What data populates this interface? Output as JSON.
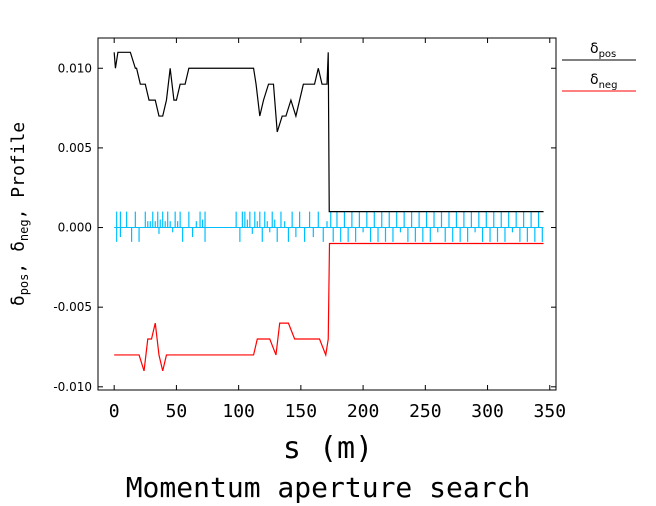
{
  "chart_data": {
    "type": "line",
    "title": "Momentum aperture search",
    "xlabel": "s (m)",
    "ylabel_main": "δ",
    "ylabel_sub1": "pos",
    "ylabel_sep": ", ",
    "ylabel_sub2": "neg",
    "ylabel_tail": ", Profile",
    "xlim": [
      -13,
      355
    ],
    "ylim": [
      -0.0102,
      0.0119
    ],
    "x_ticks": [
      0,
      50,
      100,
      150,
      200,
      250,
      300,
      350
    ],
    "x_tick_labels": [
      "0",
      "50",
      "100",
      "150",
      "200",
      "250",
      "300",
      "350"
    ],
    "y_ticks": [
      0.01,
      0.005,
      0.0,
      -0.005,
      -0.01
    ],
    "y_tick_labels": [
      "0.010",
      "0.005",
      "0.000",
      "-0.005",
      "-0.010"
    ],
    "legend_position": "right-outside",
    "colors": {
      "delta_pos": "#000000",
      "delta_neg": "#ff0000",
      "profile": "#00bfff",
      "axis": "#000000"
    },
    "legend": [
      {
        "main": "δ",
        "sub": "pos",
        "color": "#000000"
      },
      {
        "main": "δ",
        "sub": "neg",
        "color": "#ff0000"
      }
    ],
    "series": [
      {
        "name": "δpos",
        "color": "#000000",
        "x": [
          0,
          1,
          3,
          4,
          12,
          13,
          17,
          18,
          21,
          25,
          28,
          33,
          36,
          39,
          42,
          45,
          48,
          50,
          53,
          57,
          60,
          65,
          70,
          75,
          80,
          100,
          112,
          114,
          117,
          120,
          124,
          128,
          131,
          135,
          138,
          142,
          146,
          152,
          157,
          161,
          164,
          167,
          170,
          171,
          172,
          172.8,
          173,
          175,
          200,
          250,
          300,
          345
        ],
        "y": [
          0.011,
          0.01,
          0.011,
          0.011,
          0.011,
          0.011,
          0.01,
          0.01,
          0.009,
          0.009,
          0.008,
          0.008,
          0.007,
          0.007,
          0.008,
          0.01,
          0.008,
          0.008,
          0.009,
          0.009,
          0.01,
          0.01,
          0.01,
          0.01,
          0.01,
          0.01,
          0.01,
          0.009,
          0.007,
          0.008,
          0.009,
          0.009,
          0.006,
          0.007,
          0.007,
          0.008,
          0.007,
          0.009,
          0.009,
          0.009,
          0.01,
          0.009,
          0.009,
          0.009,
          0.011,
          0.001,
          0.001,
          0.001,
          0.001,
          0.001,
          0.001,
          0.001
        ]
      },
      {
        "name": "δneg",
        "color": "#ff0000",
        "x": [
          0,
          5,
          15,
          20,
          24,
          27,
          30,
          33,
          36,
          39,
          42,
          45,
          48,
          52,
          60,
          70,
          80,
          90,
          100,
          112,
          115,
          118,
          125,
          130,
          133,
          140,
          145,
          150,
          155,
          160,
          165,
          170,
          172,
          173,
          175,
          200,
          250,
          300,
          345
        ],
        "y": [
          -0.008,
          -0.008,
          -0.008,
          -0.008,
          -0.009,
          -0.007,
          -0.007,
          -0.006,
          -0.008,
          -0.009,
          -0.008,
          -0.008,
          -0.008,
          -0.008,
          -0.008,
          -0.008,
          -0.008,
          -0.008,
          -0.008,
          -0.008,
          -0.007,
          -0.007,
          -0.007,
          -0.008,
          -0.006,
          -0.006,
          -0.007,
          -0.007,
          -0.007,
          -0.007,
          -0.007,
          -0.008,
          -0.007,
          -0.001,
          -0.001,
          -0.001,
          -0.001,
          -0.001,
          -0.001
        ]
      },
      {
        "name": "Profile",
        "color": "#00bfff",
        "baseline": 0.0,
        "span": [
          0,
          345
        ],
        "spikes": [
          {
            "x": 2,
            "y": 0.001
          },
          {
            "x": 2,
            "y": -0.0009
          },
          {
            "x": 5,
            "y": 0.001
          },
          {
            "x": 5,
            "y": -0.0006
          },
          {
            "x": 10,
            "y": 0.001
          },
          {
            "x": 14,
            "y": -0.0009
          },
          {
            "x": 17,
            "y": 0.001
          },
          {
            "x": 20,
            "y": -0.0009
          },
          {
            "x": 25,
            "y": 0.001
          },
          {
            "x": 27,
            "y": 0.0004
          },
          {
            "x": 29,
            "y": 0.0004
          },
          {
            "x": 31,
            "y": 0.001
          },
          {
            "x": 33,
            "y": 0.0004
          },
          {
            "x": 35,
            "y": 0.001
          },
          {
            "x": 36,
            "y": -0.0004
          },
          {
            "x": 37,
            "y": 0.0005
          },
          {
            "x": 39,
            "y": 0.001
          },
          {
            "x": 41,
            "y": 0.0004
          },
          {
            "x": 43,
            "y": 0.001
          },
          {
            "x": 45,
            "y": 0.0004
          },
          {
            "x": 47,
            "y": -0.0003
          },
          {
            "x": 49,
            "y": 0.001
          },
          {
            "x": 51,
            "y": 0.0004
          },
          {
            "x": 53,
            "y": 0.001
          },
          {
            "x": 55,
            "y": -0.0009
          },
          {
            "x": 60,
            "y": 0.001
          },
          {
            "x": 63,
            "y": -0.0006
          },
          {
            "x": 66,
            "y": 0.0004
          },
          {
            "x": 69,
            "y": 0.001
          },
          {
            "x": 71,
            "y": 0.0005
          },
          {
            "x": 73,
            "y": 0.001
          },
          {
            "x": 73,
            "y": -0.0009
          },
          {
            "x": 98,
            "y": 0.001
          },
          {
            "x": 101,
            "y": -0.0009
          },
          {
            "x": 103,
            "y": 0.001
          },
          {
            "x": 105,
            "y": 0.001
          },
          {
            "x": 107,
            "y": 0.0005
          },
          {
            "x": 109,
            "y": 0.001
          },
          {
            "x": 111,
            "y": -0.0004
          },
          {
            "x": 113,
            "y": 0.001
          },
          {
            "x": 115,
            "y": 0.0004
          },
          {
            "x": 117,
            "y": 0.001
          },
          {
            "x": 119,
            "y": -0.0009
          },
          {
            "x": 121,
            "y": 0.001
          },
          {
            "x": 123,
            "y": 0.0004
          },
          {
            "x": 125,
            "y": -0.0003
          },
          {
            "x": 127,
            "y": 0.001
          },
          {
            "x": 129,
            "y": 0.0005
          },
          {
            "x": 131,
            "y": -0.0009
          },
          {
            "x": 134,
            "y": 0.001
          },
          {
            "x": 137,
            "y": 0.0004
          },
          {
            "x": 140,
            "y": -0.0009
          },
          {
            "x": 143,
            "y": 0.001
          },
          {
            "x": 146,
            "y": -0.0006
          },
          {
            "x": 149,
            "y": 0.001
          },
          {
            "x": 153,
            "y": -0.0009
          },
          {
            "x": 157,
            "y": 0.001
          },
          {
            "x": 160,
            "y": -0.0006
          },
          {
            "x": 164,
            "y": 0.001
          },
          {
            "x": 168,
            "y": -0.0009
          },
          {
            "x": 171,
            "y": 0.0004
          },
          {
            "x": 174,
            "y": 0.001
          },
          {
            "x": 176,
            "y": -0.0009
          },
          {
            "x": 179,
            "y": 0.001
          },
          {
            "x": 182,
            "y": -0.0009
          },
          {
            "x": 185,
            "y": 0.001
          },
          {
            "x": 188,
            "y": -0.0009
          },
          {
            "x": 191,
            "y": 0.001
          },
          {
            "x": 194,
            "y": -0.0009
          },
          {
            "x": 197,
            "y": 0.001
          },
          {
            "x": 200,
            "y": -0.0003
          },
          {
            "x": 203,
            "y": 0.001
          },
          {
            "x": 206,
            "y": -0.0009
          },
          {
            "x": 209,
            "y": 0.001
          },
          {
            "x": 212,
            "y": -0.0009
          },
          {
            "x": 215,
            "y": 0.001
          },
          {
            "x": 218,
            "y": -0.0009
          },
          {
            "x": 221,
            "y": 0.001
          },
          {
            "x": 224,
            "y": -0.0009
          },
          {
            "x": 227,
            "y": 0.001
          },
          {
            "x": 230,
            "y": -0.0003
          },
          {
            "x": 233,
            "y": 0.001
          },
          {
            "x": 236,
            "y": -0.0009
          },
          {
            "x": 239,
            "y": 0.001
          },
          {
            "x": 242,
            "y": -0.0009
          },
          {
            "x": 245,
            "y": 0.001
          },
          {
            "x": 248,
            "y": -0.0009
          },
          {
            "x": 251,
            "y": 0.001
          },
          {
            "x": 254,
            "y": -0.0009
          },
          {
            "x": 257,
            "y": 0.001
          },
          {
            "x": 260,
            "y": -0.0003
          },
          {
            "x": 263,
            "y": 0.001
          },
          {
            "x": 266,
            "y": -0.0009
          },
          {
            "x": 269,
            "y": 0.001
          },
          {
            "x": 272,
            "y": -0.0009
          },
          {
            "x": 275,
            "y": 0.001
          },
          {
            "x": 278,
            "y": -0.0009
          },
          {
            "x": 281,
            "y": 0.001
          },
          {
            "x": 284,
            "y": -0.0009
          },
          {
            "x": 287,
            "y": 0.001
          },
          {
            "x": 290,
            "y": -0.0003
          },
          {
            "x": 293,
            "y": 0.001
          },
          {
            "x": 296,
            "y": -0.0009
          },
          {
            "x": 299,
            "y": 0.001
          },
          {
            "x": 302,
            "y": -0.0009
          },
          {
            "x": 305,
            "y": 0.001
          },
          {
            "x": 308,
            "y": -0.0009
          },
          {
            "x": 311,
            "y": 0.001
          },
          {
            "x": 314,
            "y": -0.0009
          },
          {
            "x": 317,
            "y": 0.001
          },
          {
            "x": 320,
            "y": -0.0003
          },
          {
            "x": 323,
            "y": 0.001
          },
          {
            "x": 326,
            "y": -0.0009
          },
          {
            "x": 329,
            "y": 0.001
          },
          {
            "x": 332,
            "y": -0.0009
          },
          {
            "x": 335,
            "y": 0.001
          },
          {
            "x": 338,
            "y": -0.0009
          },
          {
            "x": 341,
            "y": 0.001
          },
          {
            "x": 344,
            "y": -0.0009
          }
        ]
      }
    ]
  }
}
